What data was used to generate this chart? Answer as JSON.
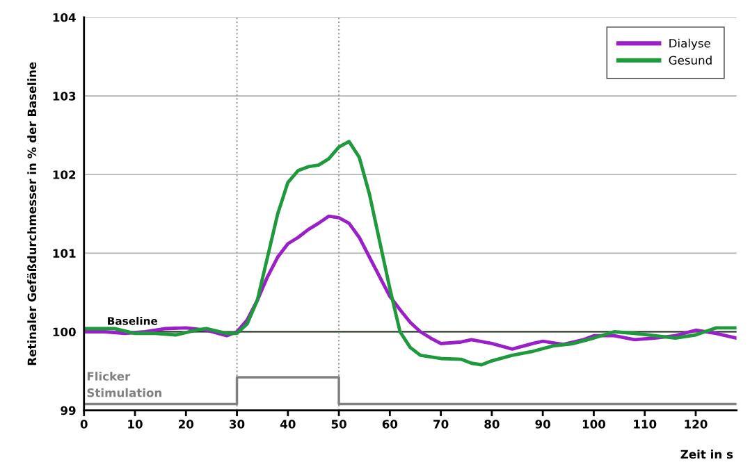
{
  "chart_data": {
    "type": "line",
    "xlabel": "Zeit in s",
    "ylabel": "Retinaler Gefäßdurchmesser in % der Baseline",
    "xlim": [
      0,
      128
    ],
    "xticks": [
      0,
      10,
      20,
      30,
      40,
      50,
      60,
      70,
      80,
      90,
      100,
      110,
      120
    ],
    "ylim": [
      99,
      104
    ],
    "yticks": [
      99,
      100,
      101,
      102,
      103,
      104
    ],
    "grid": "y",
    "legend": "top right",
    "line_style": "solid",
    "marker": "none",
    "series": [
      {
        "name": "Dialyse",
        "color": "#9b1fc9",
        "x": [
          0,
          4,
          8,
          12,
          16,
          20,
          24,
          28,
          30,
          32,
          34,
          36,
          38,
          40,
          42,
          44,
          46,
          48,
          50,
          52,
          54,
          56,
          58,
          60,
          62,
          64,
          66,
          68,
          70,
          74,
          76,
          80,
          84,
          88,
          90,
          94,
          98,
          100,
          104,
          108,
          112,
          116,
          120,
          124,
          128
        ],
        "values": [
          100.0,
          100.0,
          99.98,
          100.0,
          100.04,
          100.05,
          100.02,
          99.95,
          100.0,
          100.15,
          100.4,
          100.7,
          100.95,
          101.12,
          101.2,
          101.3,
          101.38,
          101.47,
          101.45,
          101.38,
          101.2,
          100.95,
          100.7,
          100.45,
          100.28,
          100.12,
          100.0,
          99.92,
          99.85,
          99.87,
          99.9,
          99.85,
          99.78,
          99.85,
          99.88,
          99.84,
          99.9,
          99.95,
          99.95,
          99.9,
          99.92,
          99.95,
          100.02,
          99.98,
          99.92
        ]
      },
      {
        "name": "Gesund",
        "color": "#1e9a3c",
        "x": [
          0,
          6,
          10,
          14,
          18,
          22,
          24,
          28,
          30,
          32,
          34,
          36,
          38,
          40,
          42,
          44,
          46,
          48,
          50,
          52,
          54,
          56,
          58,
          60,
          62,
          64,
          66,
          68,
          70,
          74,
          76,
          78,
          80,
          84,
          88,
          92,
          96,
          100,
          104,
          108,
          112,
          116,
          120,
          124,
          128
        ],
        "values": [
          100.04,
          100.04,
          99.98,
          99.98,
          99.96,
          100.02,
          100.04,
          99.98,
          99.98,
          100.1,
          100.4,
          100.95,
          101.5,
          101.9,
          102.05,
          102.1,
          102.12,
          102.2,
          102.35,
          102.42,
          102.22,
          101.75,
          101.15,
          100.55,
          100.0,
          99.8,
          99.7,
          99.68,
          99.66,
          99.65,
          99.6,
          99.58,
          99.63,
          99.7,
          99.75,
          99.82,
          99.85,
          99.92,
          100.0,
          99.98,
          99.95,
          99.92,
          99.96,
          100.05,
          100.05
        ]
      },
      {
        "type": "step",
        "color": "#808080",
        "name": "Flicker Stimulation",
        "x": [
          0,
          30,
          50,
          128
        ],
        "values": [
          99.08,
          99.42,
          99.08,
          99.08
        ]
      }
    ],
    "ref_lines": [
      {
        "axis": "y",
        "value": 100,
        "label": "Baseline",
        "color": "#1a2e1a",
        "line_style": "solid"
      },
      {
        "axis": "x",
        "value": 30,
        "color": "#999999",
        "line_style": "dotted"
      },
      {
        "axis": "x",
        "value": 50,
        "color": "#999999",
        "line_style": "dotted"
      }
    ]
  }
}
